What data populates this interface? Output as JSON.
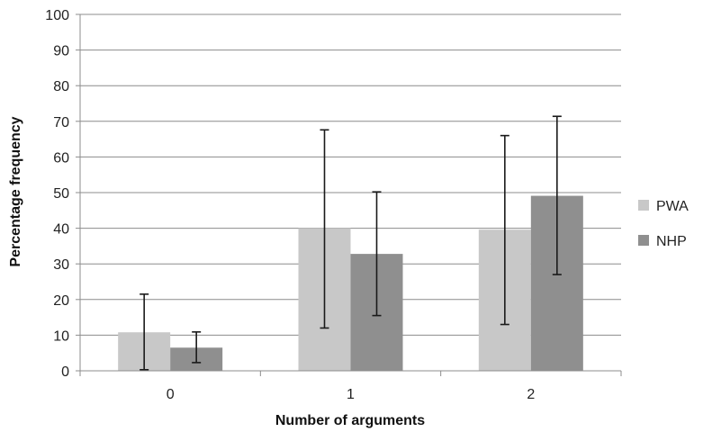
{
  "chart_data": {
    "type": "bar",
    "title": "",
    "xlabel": "Number of arguments",
    "ylabel": "Percentage frequency",
    "categories": [
      "0",
      "1",
      "2"
    ],
    "ylim": [
      0,
      100
    ],
    "yticks": [
      0,
      10,
      20,
      30,
      40,
      50,
      60,
      70,
      80,
      90,
      100
    ],
    "grid": true,
    "legend_position": "right",
    "series": [
      {
        "name": "PWA",
        "color": "#c8c8c8",
        "values": [
          10.8,
          40,
          39.6
        ],
        "error_low": [
          0.3,
          12,
          13
        ],
        "error_high": [
          21.5,
          67.6,
          66
        ]
      },
      {
        "name": "NHP",
        "color": "#8f8f8f",
        "values": [
          6.5,
          32.8,
          49.1
        ],
        "error_low": [
          2.3,
          15.5,
          27
        ],
        "error_high": [
          10.9,
          50.2,
          71.4
        ]
      }
    ]
  }
}
